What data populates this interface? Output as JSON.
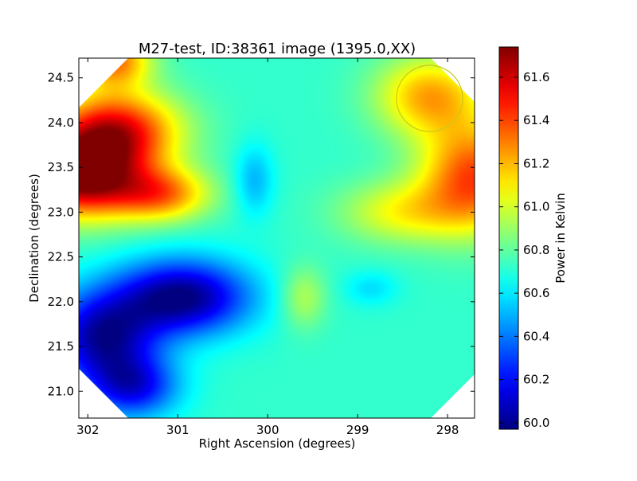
{
  "chart_data": {
    "type": "heatmap",
    "title": "M27-test, ID:38361 image (1395.0,XX)",
    "xlabel": "Right Ascension (degrees)",
    "ylabel": "Declination (degrees)",
    "xlim": [
      302.1,
      297.7
    ],
    "ylim": [
      20.7,
      24.72
    ],
    "x_ticks": [
      {
        "value": 302,
        "label": "302"
      },
      {
        "value": 301,
        "label": "301"
      },
      {
        "value": 300,
        "label": "300"
      },
      {
        "value": 299,
        "label": "299"
      },
      {
        "value": 298,
        "label": "298"
      }
    ],
    "y_ticks": [
      {
        "value": 21.0,
        "label": "21.0"
      },
      {
        "value": 21.5,
        "label": "21.5"
      },
      {
        "value": 22.0,
        "label": "22.0"
      },
      {
        "value": 22.5,
        "label": "22.5"
      },
      {
        "value": 23.0,
        "label": "23.0"
      },
      {
        "value": 23.5,
        "label": "23.5"
      },
      {
        "value": 24.0,
        "label": "24.0"
      },
      {
        "value": 24.5,
        "label": "24.5"
      }
    ],
    "colorbar": {
      "label": "Power in Kelvin",
      "colormap": "jet",
      "range": [
        59.97,
        61.74
      ],
      "ticks": [
        {
          "value": 60.0,
          "label": "60.0"
        },
        {
          "value": 60.2,
          "label": "60.2"
        },
        {
          "value": 60.4,
          "label": "60.4"
        },
        {
          "value": 60.6,
          "label": "60.6"
        },
        {
          "value": 60.8,
          "label": "60.8"
        },
        {
          "value": 61.0,
          "label": "61.0"
        },
        {
          "value": 61.2,
          "label": "61.2"
        },
        {
          "value": 61.4,
          "label": "61.4"
        },
        {
          "value": 61.6,
          "label": "61.6"
        }
      ]
    },
    "background_value": 60.72,
    "field_features": [
      {
        "kind": "max",
        "ra": 302.1,
        "dec": 23.4,
        "value": 61.74,
        "spread_ra": 0.65,
        "spread_dec": 0.45
      },
      {
        "kind": "max",
        "ra": 301.7,
        "dec": 23.9,
        "value": 61.55,
        "spread_ra": 0.7,
        "spread_dec": 0.45
      },
      {
        "kind": "max",
        "ra": 301.2,
        "dec": 23.2,
        "value": 61.3,
        "spread_ra": 0.55,
        "spread_dec": 0.3
      },
      {
        "kind": "max",
        "ra": 301.7,
        "dec": 24.7,
        "value": 61.3,
        "spread_ra": 0.4,
        "spread_dec": 0.3
      },
      {
        "kind": "max",
        "ra": 297.7,
        "dec": 23.4,
        "value": 61.4,
        "spread_ra": 0.6,
        "spread_dec": 0.6
      },
      {
        "kind": "max",
        "ra": 298.2,
        "dec": 24.3,
        "value": 61.22,
        "spread_ra": 0.6,
        "spread_dec": 0.45
      },
      {
        "kind": "max",
        "ra": 298.5,
        "dec": 23.0,
        "value": 61.05,
        "spread_ra": 0.7,
        "spread_dec": 0.35
      },
      {
        "kind": "min",
        "ra": 300.95,
        "dec": 22.05,
        "value": 59.97,
        "spread_ra": 0.75,
        "spread_dec": 0.42
      },
      {
        "kind": "min",
        "ra": 301.85,
        "dec": 21.6,
        "value": 60.05,
        "spread_ra": 0.6,
        "spread_dec": 0.5
      },
      {
        "kind": "min",
        "ra": 301.5,
        "dec": 21.05,
        "value": 60.2,
        "spread_ra": 0.5,
        "spread_dec": 0.35
      },
      {
        "kind": "min",
        "ra": 300.15,
        "dec": 23.35,
        "value": 60.5,
        "spread_ra": 0.22,
        "spread_dec": 0.4
      },
      {
        "kind": "min",
        "ra": 298.85,
        "dec": 22.15,
        "value": 60.58,
        "spread_ra": 0.3,
        "spread_dec": 0.2
      },
      {
        "kind": "max",
        "ra": 299.6,
        "dec": 22.05,
        "value": 60.95,
        "spread_ra": 0.25,
        "spread_dec": 0.35
      }
    ],
    "beam_circle": {
      "ra": 298.2,
      "dec": 24.27,
      "radius_deg": 0.37,
      "color": "#c8c81e"
    },
    "masked_corner_color": "#ffffff"
  }
}
